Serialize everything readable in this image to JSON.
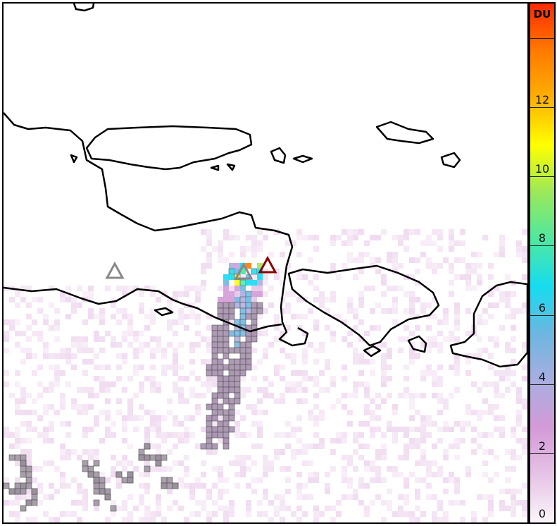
{
  "colorbar": {
    "unit_label": "DU",
    "range": [
      0,
      15
    ],
    "ticks": [
      {
        "value": 0,
        "label": "0"
      },
      {
        "value": 2,
        "label": "2"
      },
      {
        "value": 4,
        "label": "4"
      },
      {
        "value": 6,
        "label": "6"
      },
      {
        "value": 8,
        "label": "8"
      },
      {
        "value": 10,
        "label": "10"
      },
      {
        "value": 12,
        "label": "12"
      },
      {
        "value": 14,
        "label": ""
      }
    ],
    "colors": [
      "#fbf6fb",
      "#e6c3e6",
      "#d49ad8",
      "#a9aee0",
      "#6db6e0",
      "#16dcef",
      "#4ee8a0",
      "#9be85a",
      "#ffff00",
      "#ffb000",
      "#ff7a00",
      "#ff2a00"
    ]
  },
  "markers": [
    {
      "name": "volcano-grey-west",
      "color": "#888888"
    },
    {
      "name": "volcano-grey-center",
      "color": "#888888"
    },
    {
      "name": "volcano-active",
      "color": "#8b0000"
    }
  ],
  "colors": {
    "coastline": "#000000",
    "low_quality_cell": "#8c8c8c"
  }
}
